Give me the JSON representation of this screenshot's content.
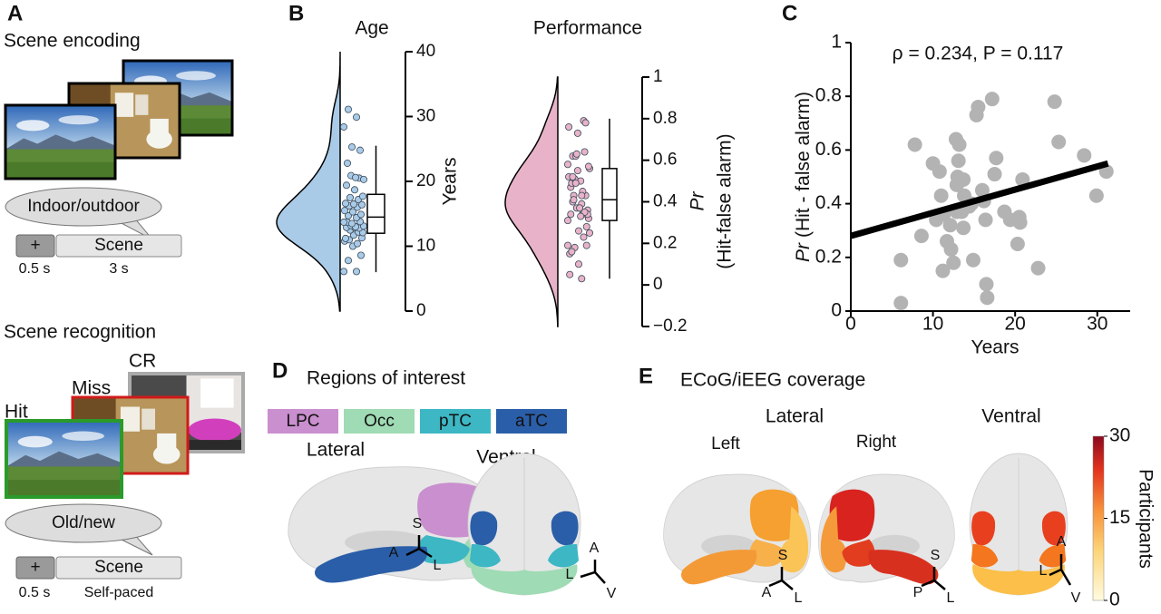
{
  "panel_a": {
    "letter": "A",
    "encoding": {
      "title": "Scene encoding",
      "prompt": "Indoor/outdoor",
      "timeline": [
        "+",
        "Scene"
      ],
      "durations": [
        "0.5 s",
        "3 s"
      ]
    },
    "recognition": {
      "title": "Scene recognition",
      "labels": [
        "CR",
        "Miss",
        "Hit"
      ],
      "prompt": "Old/new",
      "timeline": [
        "+",
        "Scene"
      ],
      "durations": [
        "0.5 s",
        "Self-paced"
      ]
    }
  },
  "panel_b": {
    "letter": "B"
  },
  "panel_c": {
    "letter": "C"
  },
  "chart_data": [
    {
      "type": "raincloud",
      "title": "Age",
      "y_label": [
        "Years"
      ],
      "color": "#a9cbe8",
      "point_color": "#a9cbe8",
      "values": [
        6.1,
        6.1,
        7.8,
        8.6,
        10.0,
        10.8,
        10.4,
        11.0,
        11.3,
        11.7,
        11.2,
        12.2,
        12.5,
        12.1,
        12.9,
        12.9,
        12.8,
        13.2,
        13.1,
        13.0,
        13.7,
        13.8,
        13.5,
        13.7,
        14.4,
        14.7,
        14.9,
        15.3,
        15.5,
        16.0,
        16.2,
        16.4,
        16.5,
        16.6,
        17.2,
        17.5,
        17.7,
        18.7,
        19.4,
        20.5,
        20.9,
        20.3,
        20.6,
        22.8,
        24.8,
        25.3,
        28.4,
        29.9,
        31.1
      ],
      "box": {
        "whisker_low": 6,
        "q1": 12,
        "median": 14.5,
        "q3": 18,
        "whisker_high": 25.5
      },
      "ylim": [
        0,
        40
      ],
      "yticks": [
        0,
        10,
        20,
        30,
        40
      ]
    },
    {
      "type": "raincloud",
      "title": "Performance",
      "y_label": [
        "Pr",
        "(Hit-false alarm)"
      ],
      "color": "#e8b3c8",
      "point_color": "#e8b3c8",
      "values": [
        0.19,
        0.03,
        0.62,
        0.28,
        0.55,
        0.52,
        0.34,
        0.43,
        0.36,
        0.26,
        0.15,
        0.23,
        0.18,
        0.32,
        0.37,
        0.47,
        0.64,
        0.62,
        0.56,
        0.5,
        0.49,
        0.43,
        0.37,
        0.31,
        0.39,
        0.4,
        0.19,
        0.73,
        0.76,
        0.45,
        0.41,
        0.34,
        0.1,
        0.05,
        0.79,
        0.51,
        0.57,
        0.37,
        0.34,
        0.35,
        0.49,
        0.25,
        0.33,
        0.16,
        0.78,
        0.63,
        0.58,
        0.43,
        0.52
      ],
      "box": {
        "whisker_low": 0.03,
        "q1": 0.31,
        "median": 0.41,
        "q3": 0.56,
        "whisker_high": 0.8
      },
      "ylim": [
        -0.2,
        1
      ],
      "yticks": [
        {
          "value": -0.2,
          "label": "−0.2"
        },
        0,
        0.2,
        0.4,
        0.6,
        0.8,
        1
      ]
    },
    {
      "type": "scatter",
      "annotation": "ρ = 0.234, P = 0.117",
      "x_label": "Years",
      "y_label": [
        "Pr",
        "(Hit - false alarm)"
      ],
      "color": "#b3b3b3",
      "fit_color": "#000000",
      "x": [
        6.1,
        6.1,
        7.8,
        8.6,
        10.0,
        10.8,
        10.4,
        11.0,
        11.3,
        11.7,
        11.2,
        12.2,
        12.5,
        12.1,
        12.9,
        12.9,
        12.8,
        13.2,
        13.1,
        13.0,
        13.7,
        13.8,
        13.5,
        13.7,
        14.4,
        14.7,
        14.9,
        15.3,
        15.5,
        16.0,
        16.2,
        16.4,
        16.5,
        16.6,
        17.2,
        17.5,
        17.7,
        18.7,
        19.4,
        20.5,
        20.9,
        20.3,
        20.6,
        22.8,
        24.8,
        25.3,
        28.4,
        29.9,
        31.1
      ],
      "values": [
        0.19,
        0.03,
        0.62,
        0.28,
        0.55,
        0.52,
        0.34,
        0.43,
        0.36,
        0.26,
        0.15,
        0.23,
        0.18,
        0.32,
        0.37,
        0.47,
        0.64,
        0.62,
        0.56,
        0.5,
        0.49,
        0.43,
        0.37,
        0.31,
        0.39,
        0.4,
        0.19,
        0.73,
        0.76,
        0.45,
        0.41,
        0.34,
        0.1,
        0.05,
        0.79,
        0.51,
        0.57,
        0.37,
        0.34,
        0.35,
        0.49,
        0.25,
        0.33,
        0.16,
        0.78,
        0.63,
        0.58,
        0.43,
        0.52
      ],
      "fit": {
        "x": [
          0,
          31.3
        ],
        "values": [
          0.28,
          0.55
        ]
      },
      "xlim": [
        0,
        34
      ],
      "xticks": [
        0,
        10,
        20,
        30
      ],
      "ylim": [
        0,
        1
      ],
      "yticks": [
        0,
        0.2,
        0.4,
        0.6,
        0.8,
        1
      ]
    }
  ],
  "panel_d": {
    "letter": "D",
    "title": "Regions of interest",
    "legend": [
      {
        "name": "LPC",
        "color": "#c98fce"
      },
      {
        "name": "Occ",
        "color": "#9fdbb4"
      },
      {
        "name": "pTC",
        "color": "#3db7c4"
      },
      {
        "name": "aTC",
        "color": "#2b5ea8"
      }
    ],
    "views": [
      "Lateral",
      "Ventral"
    ],
    "axes": {
      "lateral": [
        "S",
        "A",
        "L"
      ],
      "ventral": [
        "A",
        "L",
        "V"
      ]
    }
  },
  "panel_e": {
    "letter": "E",
    "title": "ECoG/iEEG coverage",
    "views": [
      "Lateral",
      "Ventral"
    ],
    "hemispheres": [
      "Left",
      "Right"
    ],
    "axes": {
      "left": [
        "S",
        "A",
        "L"
      ],
      "right": [
        "S",
        "P",
        "L"
      ],
      "ventral": [
        "A",
        "L",
        "V"
      ]
    },
    "colorbar": {
      "label": "Participants",
      "lim": [
        0,
        30
      ],
      "ticks": [
        0,
        15,
        30
      ]
    }
  }
}
